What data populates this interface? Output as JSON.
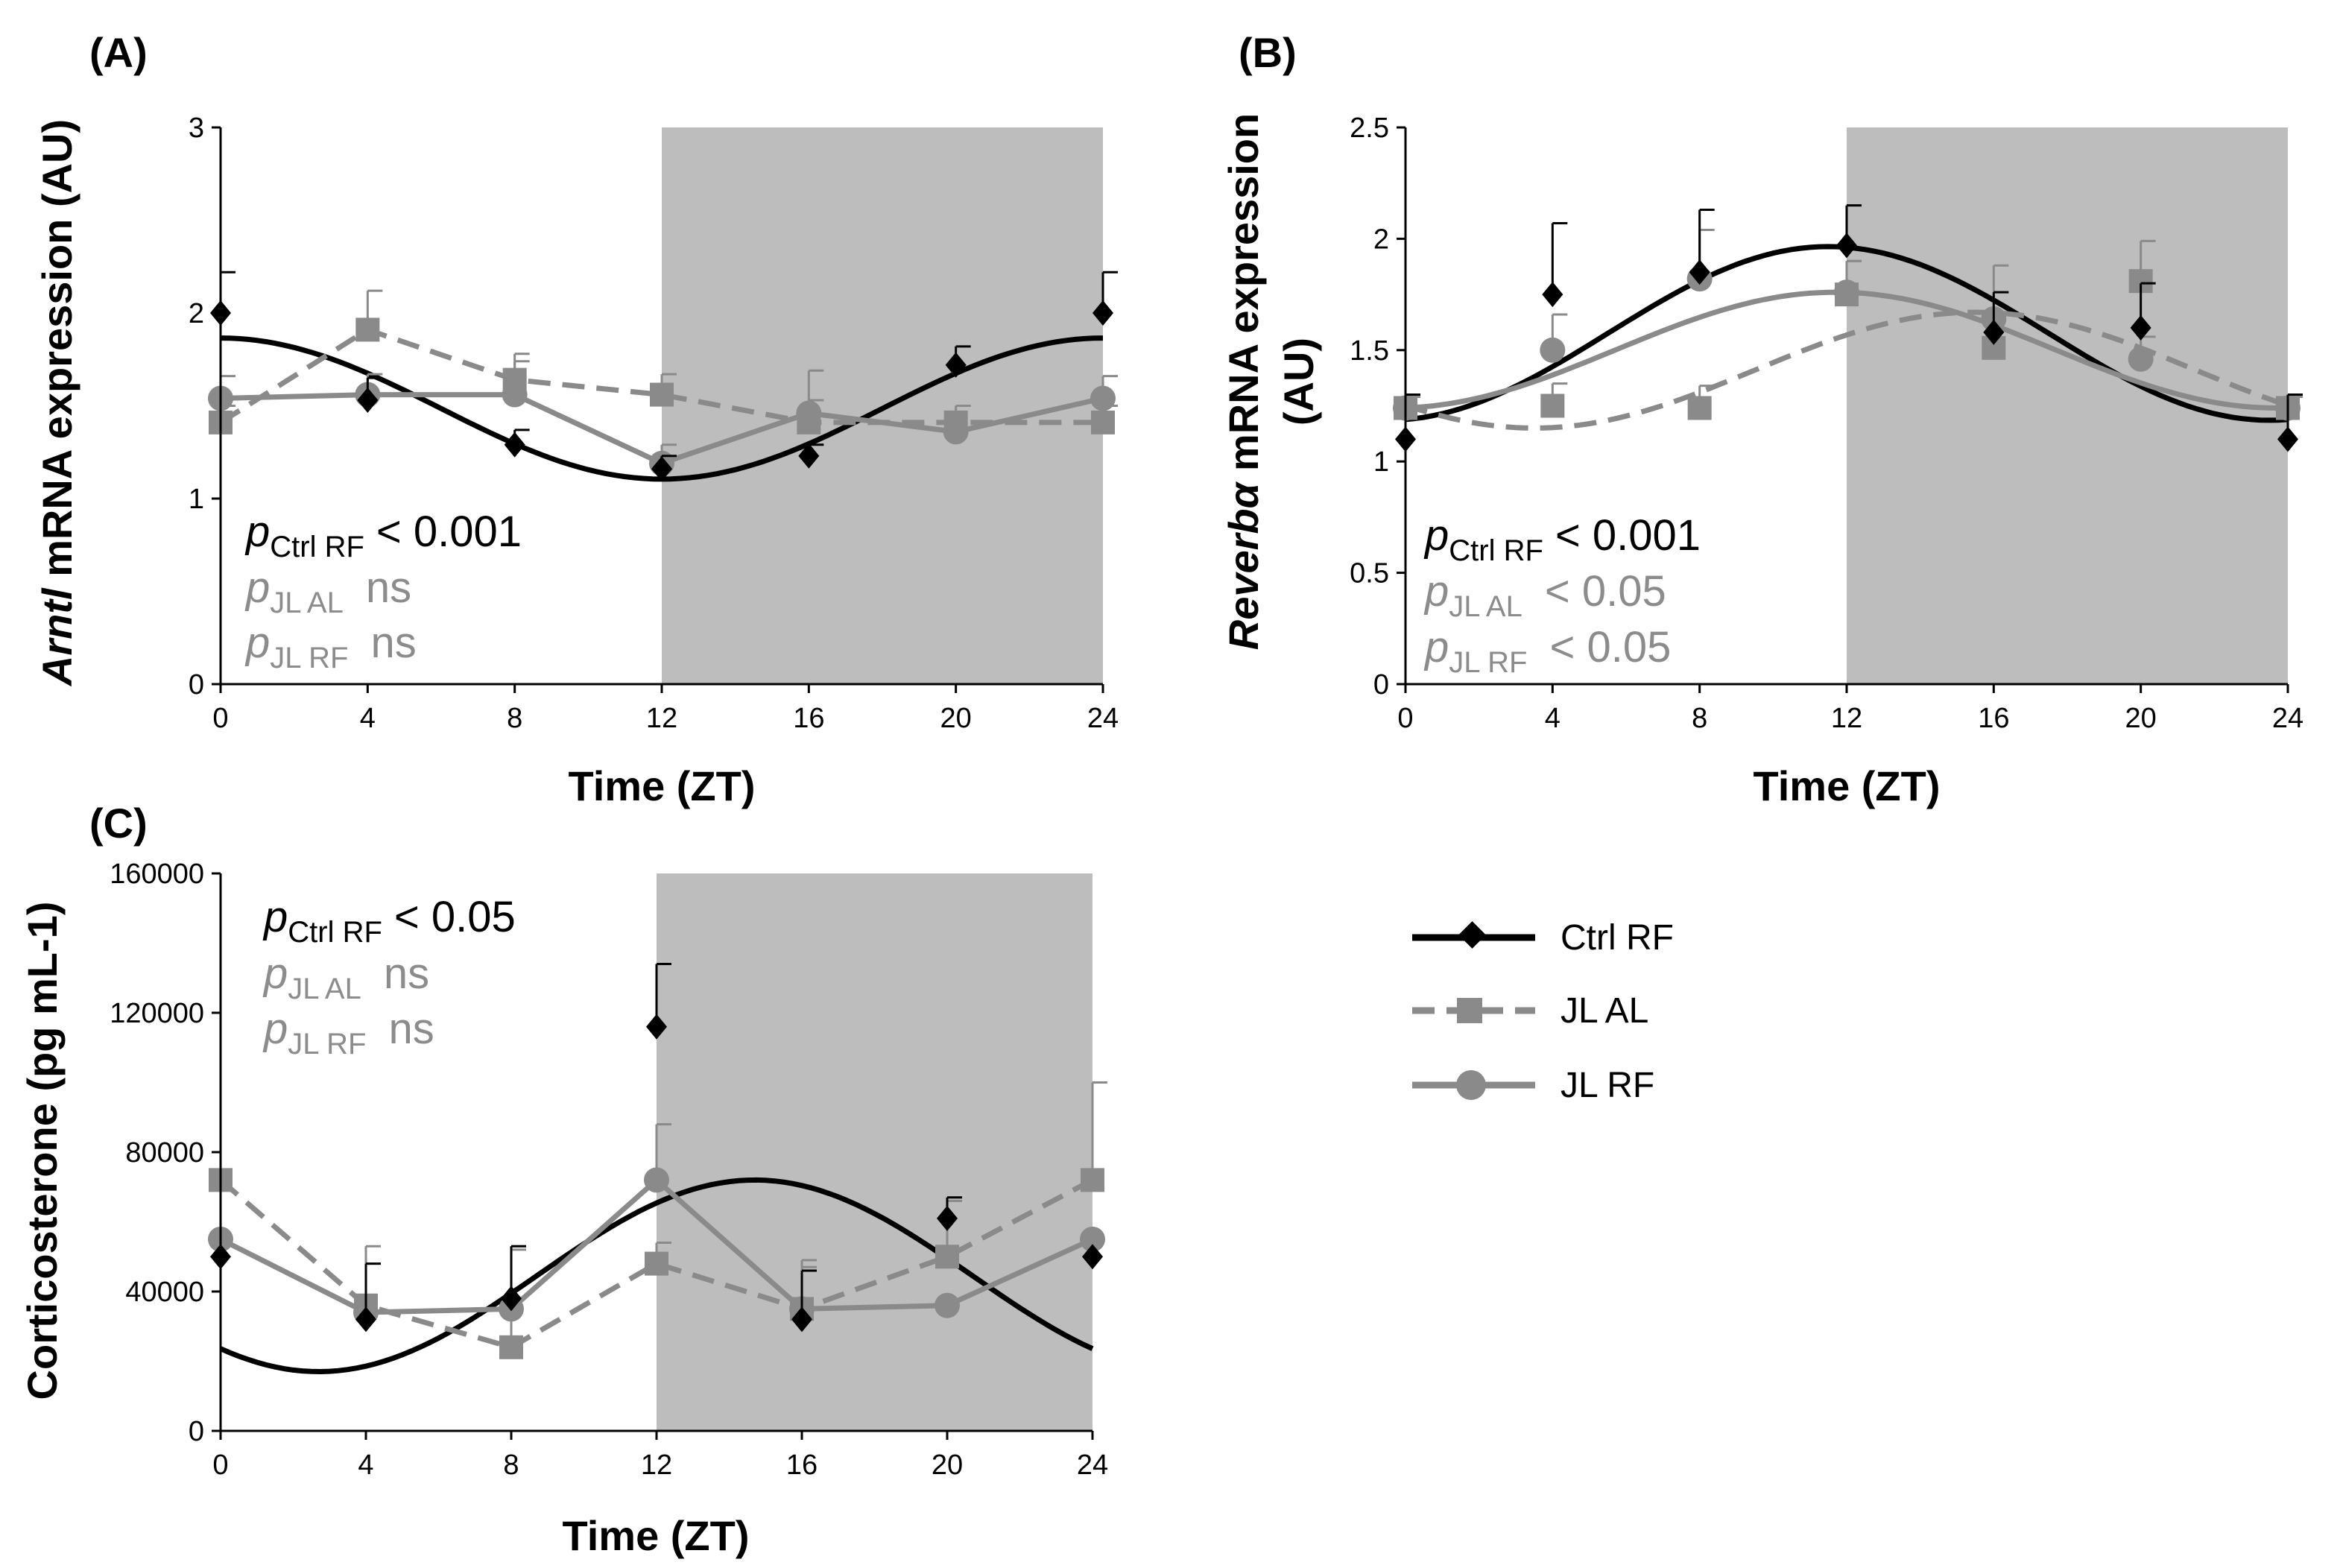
{
  "legend": [
    {
      "key": "ctrl_rf",
      "label": "Ctrl RF"
    },
    {
      "key": "jl_al",
      "label": "JL AL"
    },
    {
      "key": "jl_rf",
      "label": "JL RF"
    }
  ],
  "colors": {
    "ctrl_rf": "#000000",
    "jl_al": "#8a8a8a",
    "jl_rf": "#8a8a8a",
    "dark_phase": "#bdbdbd",
    "stat_sig": "#000000",
    "stat_ns": "#8c8c8c"
  },
  "chart_data": [
    {
      "panel": "(A)",
      "type": "line",
      "ylabel_italic": "Arntl",
      "ylabel_rest": " mRNA expression (AU)",
      "xlabel": "Time (ZT)",
      "x": [
        0,
        4,
        8,
        12,
        16,
        20,
        24
      ],
      "xticks": [
        0,
        4,
        8,
        12,
        16,
        20,
        24
      ],
      "xlim": [
        0,
        24
      ],
      "ylim": [
        0,
        3
      ],
      "yticks": [
        0,
        1,
        2,
        3
      ],
      "ytick_labels": [
        "0",
        "1",
        "2",
        "3"
      ],
      "dark_phase": [
        12,
        24
      ],
      "series": [
        {
          "name": "Ctrl RF",
          "key": "ctrl_rf",
          "values": [
            2.0,
            1.53,
            1.29,
            1.16,
            1.23,
            1.72,
            2.0
          ],
          "errors": [
            0.22,
            0.12,
            0.08,
            0.07,
            0.06,
            0.1,
            0.22
          ]
        },
        {
          "name": "JL AL",
          "key": "jl_al",
          "values": [
            1.41,
            1.91,
            1.64,
            1.56,
            1.41,
            1.41,
            1.41
          ],
          "errors": [
            0.09,
            0.21,
            0.14,
            0.11,
            0.12,
            0.09,
            0.09
          ]
        },
        {
          "name": "JL RF",
          "key": "jl_rf",
          "values": [
            1.54,
            1.56,
            1.56,
            1.19,
            1.46,
            1.36,
            1.54
          ],
          "errors": [
            0.12,
            0.11,
            0.18,
            0.1,
            0.23,
            0.14,
            0.12
          ]
        }
      ],
      "fit": {
        "series": "Ctrl RF",
        "mesor": 1.485,
        "amplitude": 0.38,
        "peak_zt": 0
      },
      "stats": [
        {
          "label": "Ctrl RF",
          "value": "< 0.001",
          "sig": true
        },
        {
          "label": "JL AL",
          "value": "ns",
          "sig": false
        },
        {
          "label": "JL RF",
          "value": "ns",
          "sig": false
        }
      ]
    },
    {
      "panel": "(B)",
      "type": "line",
      "ylabel_italic": "Reverbα",
      "ylabel_rest": " mRNA expression",
      "ylabel_line2": "(AU)",
      "xlabel": "Time (ZT)",
      "x": [
        0,
        4,
        8,
        12,
        16,
        20,
        24
      ],
      "xticks": [
        0,
        4,
        8,
        12,
        16,
        20,
        24
      ],
      "xlim": [
        0,
        24
      ],
      "ylim": [
        0,
        2.5
      ],
      "yticks": [
        0,
        0.5,
        1,
        1.5,
        2,
        2.5
      ],
      "ytick_labels": [
        "0",
        "0.5",
        "1",
        "1.5",
        "2",
        "2.5"
      ],
      "dark_phase": [
        12,
        24
      ],
      "series": [
        {
          "name": "Ctrl RF",
          "key": "ctrl_rf",
          "values": [
            1.1,
            1.75,
            1.85,
            1.97,
            1.58,
            1.6,
            1.1
          ],
          "errors": [
            0.2,
            0.32,
            0.28,
            0.18,
            0.18,
            0.2,
            0.2
          ]
        },
        {
          "name": "JL AL",
          "key": "jl_al",
          "values": [
            1.24,
            1.25,
            1.24,
            1.75,
            1.51,
            1.81,
            1.24
          ],
          "errors": [
            0.05,
            0.1,
            0.1,
            0.15,
            0.15,
            0.18,
            0.05
          ]
        },
        {
          "name": "JL RF",
          "key": "jl_rf",
          "values": [
            1.24,
            1.5,
            1.82,
            1.76,
            1.64,
            1.46,
            1.24
          ],
          "errors": [
            0.05,
            0.16,
            0.22,
            0.14,
            0.24,
            0.1,
            0.05
          ]
        }
      ],
      "fits": [
        {
          "series": "Ctrl RF",
          "mesor": 1.575,
          "amplitude": 0.39,
          "peak_zt": 11.5
        },
        {
          "series": "JL AL",
          "mesor": 1.41,
          "amplitude": 0.26,
          "peak_zt": 15.5
        },
        {
          "series": "JL RF",
          "mesor": 1.5,
          "amplitude": 0.26,
          "peak_zt": 11.7
        }
      ],
      "stats": [
        {
          "label": "Ctrl RF",
          "value": "< 0.001",
          "sig": true
        },
        {
          "label": "JL AL",
          "value": "< 0.05",
          "sig": false
        },
        {
          "label": "JL RF",
          "value": "< 0.05",
          "sig": false
        }
      ]
    },
    {
      "panel": "(C)",
      "type": "line",
      "ylabel_italic": "",
      "ylabel_rest": "Corticosterone (pg mL-1)",
      "xlabel": "Time (ZT)",
      "x": [
        0,
        4,
        8,
        12,
        16,
        20,
        24
      ],
      "xticks": [
        0,
        4,
        8,
        12,
        16,
        20,
        24
      ],
      "xlim": [
        0,
        24
      ],
      "ylim": [
        0,
        160000
      ],
      "yticks": [
        0,
        40000,
        80000,
        120000,
        160000
      ],
      "ytick_labels": [
        "0",
        "40000",
        "80000",
        "120000",
        "160000"
      ],
      "dark_phase": [
        12,
        24
      ],
      "series": [
        {
          "name": "Ctrl RF",
          "key": "ctrl_rf",
          "values": [
            50000,
            32000,
            38000,
            116000,
            32000,
            61000,
            50000
          ],
          "errors": [
            0,
            16000,
            15000,
            18000,
            14000,
            6000,
            0
          ]
        },
        {
          "name": "JL AL",
          "key": "jl_al",
          "values": [
            72000,
            36000,
            24000,
            48000,
            35000,
            50000,
            72000
          ],
          "errors": [
            0,
            12000,
            28000,
            6000,
            14000,
            16000,
            28000
          ]
        },
        {
          "name": "JL RF",
          "key": "jl_rf",
          "values": [
            55000,
            34000,
            35000,
            72000,
            35000,
            36000,
            55000
          ],
          "errors": [
            0,
            19000,
            18000,
            16000,
            12000,
            0,
            0
          ]
        }
      ],
      "fit": {
        "series": "Ctrl RF",
        "mesor": 44500,
        "amplitude": 27500,
        "peak_zt": 14.7
      },
      "stats": [
        {
          "label": "Ctrl RF",
          "value": "< 0.05",
          "sig": true
        },
        {
          "label": "JL AL",
          "value": "ns",
          "sig": false
        },
        {
          "label": "JL RF",
          "value": "ns",
          "sig": false
        }
      ]
    }
  ]
}
